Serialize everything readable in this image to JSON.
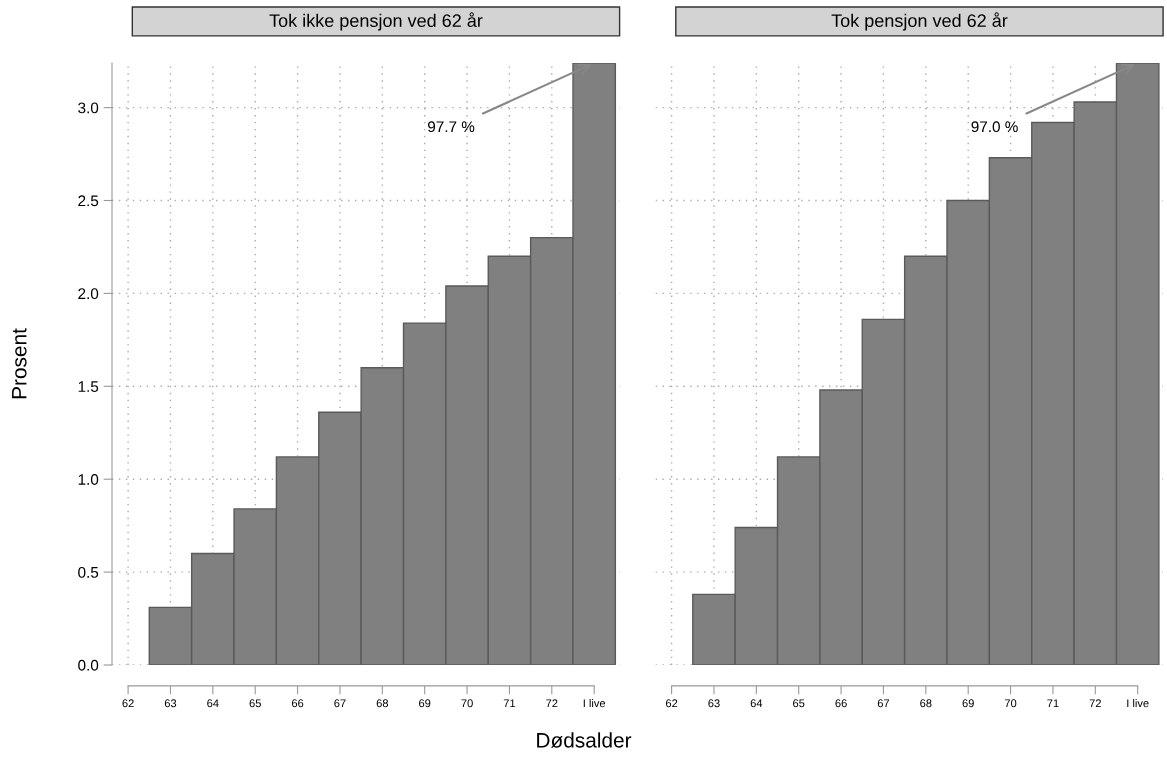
{
  "chart_data": [
    {
      "type": "bar",
      "title": "Tok ikke pensjon ved 62 år",
      "xlabel": "Dødsalder",
      "ylabel": "Prosent",
      "x": [
        63,
        64,
        65,
        66,
        67,
        68,
        69,
        70,
        71,
        72,
        73
      ],
      "values": [
        0.31,
        0.6,
        0.84,
        1.12,
        1.36,
        1.6,
        1.84,
        2.04,
        2.2,
        2.3,
        3.24
      ],
      "color": "#808080",
      "xlim": [
        61.62,
        73.6
      ],
      "xticks": [
        62,
        63,
        64,
        65,
        66,
        67,
        68,
        69,
        70,
        71,
        72,
        {
          "value": 73,
          "label": "I live"
        }
      ],
      "ylim": [
        0,
        3.24
      ],
      "yticks": [
        {
          "value": 0,
          "label": "0.0"
        },
        0.5,
        {
          "value": 1,
          "label": "1.0"
        },
        1.5,
        {
          "value": 2,
          "label": "2.0"
        },
        2.5,
        {
          "value": 3,
          "label": "3.0"
        }
      ],
      "annotations": [
        {
          "text": "97.7 %",
          "x": 73,
          "y": 3.24
        }
      ],
      "grid": true
    },
    {
      "type": "bar",
      "title": "Tok pensjon ved 62 år",
      "x": [
        63,
        64,
        65,
        66,
        67,
        68,
        69,
        70,
        71,
        72,
        73
      ],
      "values": [
        0.38,
        0.74,
        1.12,
        1.48,
        1.86,
        2.2,
        2.5,
        2.73,
        2.92,
        3.03,
        3.24
      ],
      "color": "#808080",
      "xlim": [
        61.62,
        73.6
      ],
      "xticks": [
        62,
        63,
        64,
        65,
        66,
        67,
        68,
        69,
        70,
        71,
        72,
        {
          "value": 73,
          "label": "I live"
        }
      ],
      "ylim": [
        0,
        3.24
      ],
      "yticks": [
        0,
        0.5,
        1,
        1.5,
        2,
        2.5,
        3
      ],
      "tick_labels": "x",
      "annotations": [
        {
          "text": "97.0 %",
          "x": 73,
          "y": 3.24
        }
      ],
      "grid": true
    }
  ]
}
